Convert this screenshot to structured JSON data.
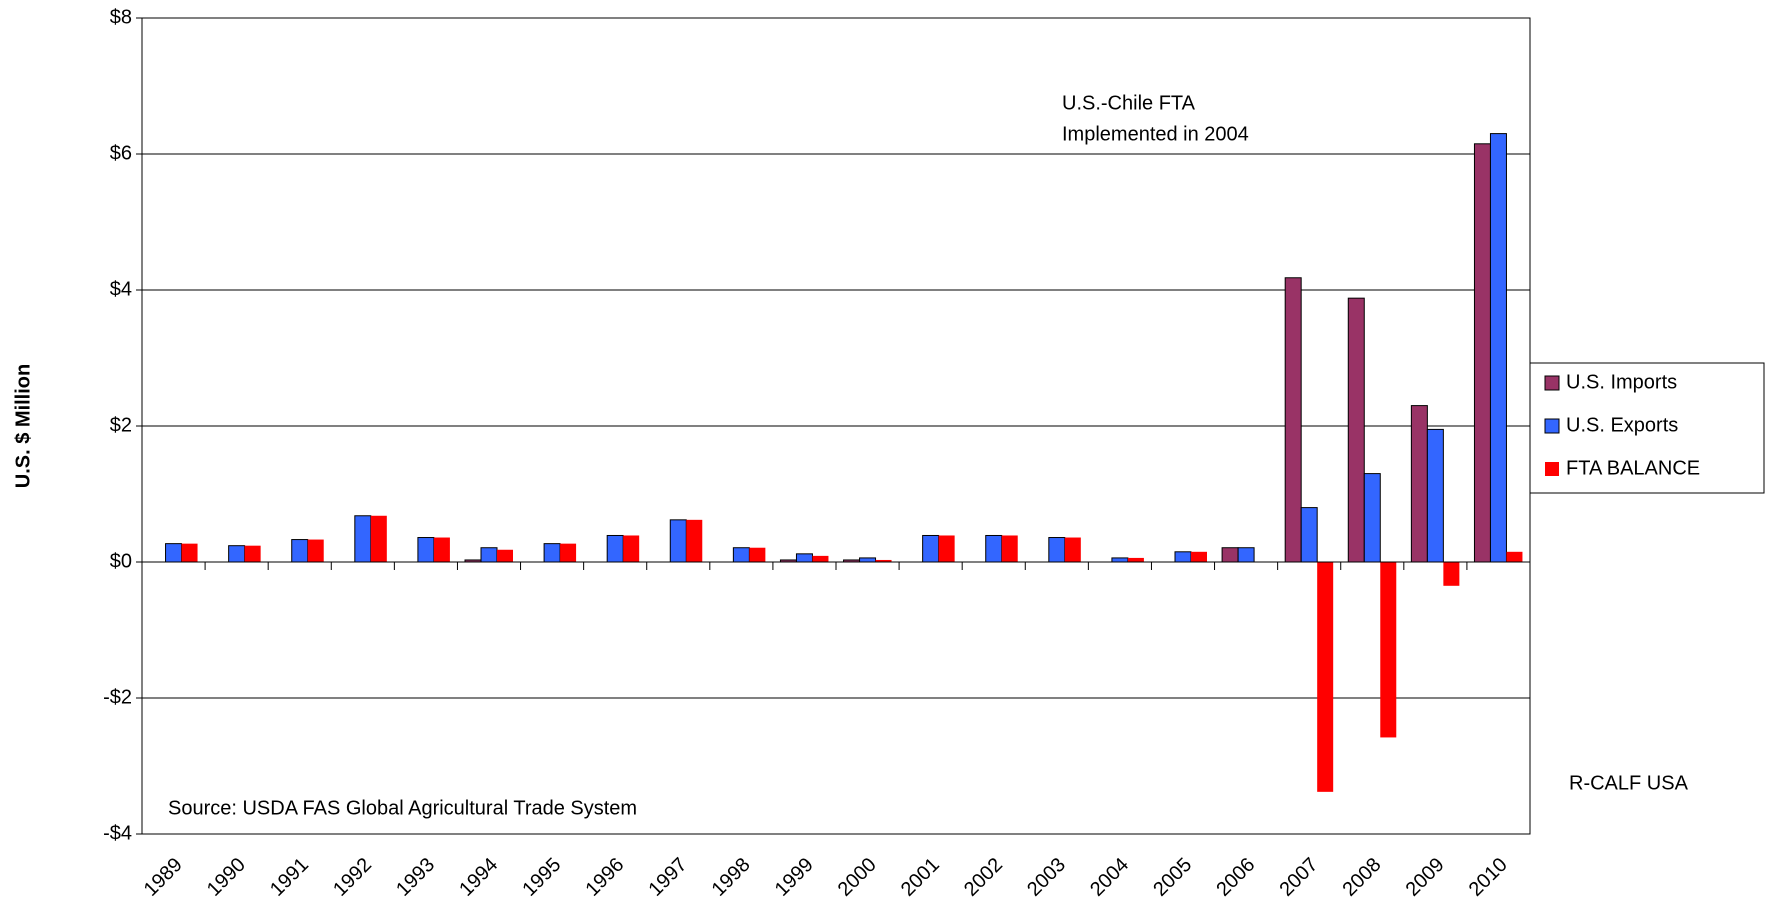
{
  "chart_data": {
    "type": "bar",
    "y_label": "U.S. $ Million",
    "annotations": [
      "U.S.-Chile FTA",
      "Implemented in 2004",
      "Source: USDA FAS Global Agricultural Trade System",
      "R-CALF USA"
    ],
    "categories": [
      "1989",
      "1990",
      "1991",
      "1992",
      "1993",
      "1994",
      "1995",
      "1996",
      "1997",
      "1998",
      "1999",
      "2000",
      "2001",
      "2002",
      "2003",
      "2004",
      "2005",
      "2006",
      "2007",
      "2008",
      "2009",
      "2010"
    ],
    "series": [
      {
        "name": "U.S. Imports",
        "color": "#993366",
        "values": [
          0,
          0,
          0,
          0,
          0,
          0.03,
          0,
          0,
          0,
          0,
          0.03,
          0.03,
          0,
          0,
          0,
          0,
          0,
          0.21,
          4.18,
          3.88,
          2.3,
          6.15
        ]
      },
      {
        "name": "U.S. Exports",
        "color": "#3366ff",
        "values": [
          0.27,
          0.24,
          0.33,
          0.68,
          0.36,
          0.21,
          0.27,
          0.39,
          0.62,
          0.21,
          0.12,
          0.06,
          0.39,
          0.39,
          0.36,
          0.06,
          0.15,
          0.21,
          0.8,
          1.3,
          1.95,
          6.3
        ]
      },
      {
        "name": "FTA BALANCE",
        "color": "#ff0000",
        "values": [
          0.27,
          0.24,
          0.33,
          0.68,
          0.36,
          0.18,
          0.27,
          0.39,
          0.62,
          0.21,
          0.09,
          0.03,
          0.39,
          0.39,
          0.36,
          0.06,
          0.15,
          0,
          -3.38,
          -2.58,
          -0.35,
          0.15
        ]
      }
    ],
    "ylim": [
      -4,
      8
    ],
    "yticks": [
      {
        "value": -4,
        "label": "-$4"
      },
      {
        "value": -2,
        "label": "-$2"
      },
      {
        "value": 0,
        "label": "$0"
      },
      {
        "value": 2,
        "label": "$2"
      },
      {
        "value": 4,
        "label": "$4"
      },
      {
        "value": 6,
        "label": "$6"
      },
      {
        "value": 8,
        "label": "$8"
      }
    ],
    "grid": true,
    "legend": "right"
  }
}
